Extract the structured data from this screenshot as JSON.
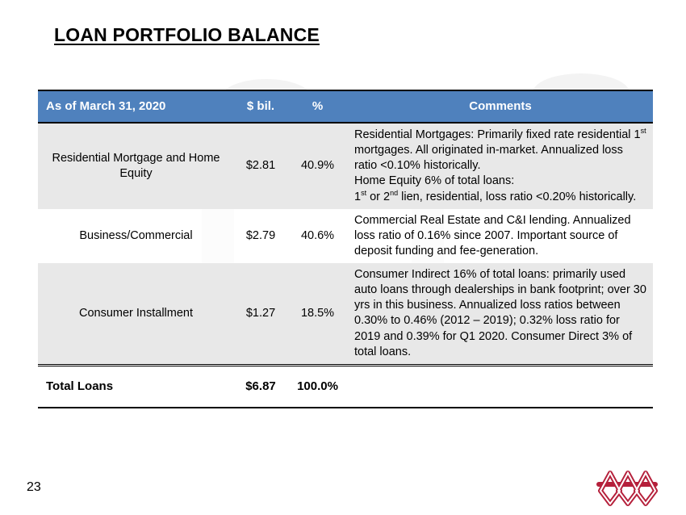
{
  "page": {
    "title": "LOAN PORTFOLIO BALANCE",
    "page_number": "23"
  },
  "table": {
    "headers": {
      "as_of": "As of March 31, 2020",
      "amount": "$ bil.",
      "percent": "%",
      "comments": "Comments"
    },
    "rows": [
      {
        "category": "Residential Mortgage and Home Equity",
        "amount": "$2.81",
        "percent": "40.9%",
        "comment_a": "Residential Mortgages: Primarily fixed rate residential 1",
        "comment_a_sup": "st",
        "comment_b": " mortgages.  All originated in-market.  Annualized loss ratio <0.10% historically.",
        "comment_c": "Home Equity 6% of total loans:",
        "comment_d": "1",
        "comment_d_sup": "st",
        "comment_e": " or 2",
        "comment_e_sup": "nd",
        "comment_f": " lien, residential, loss ratio <0.20% historically."
      },
      {
        "category": "Business/Commercial",
        "amount": "$2.79",
        "percent": "40.6%",
        "comment": "Commercial Real Estate and C&I lending. Annualized loss ratio of 0.16% since 2007. Important source of deposit funding and fee-generation."
      },
      {
        "category": "Consumer Installment",
        "amount": "$1.27",
        "percent": "18.5%",
        "comment": "Consumer Indirect 16% of total loans: primarily used auto loans through dealerships in bank footprint; over 30 yrs in this business. Annualized loss ratios between 0.30% to 0.46% (2012 – 2019); 0.32% loss ratio for 2019 and 0.39% for Q1 2020. Consumer Direct 3% of total loans."
      }
    ],
    "total": {
      "label": "Total Loans",
      "amount": "$6.87",
      "percent": "100.0%"
    }
  },
  "colors": {
    "header_bg": "#4f81bd",
    "row_shade": "#e8e8e8",
    "logo_red": "#b5203b"
  },
  "icons": {
    "logo": "bank-knot-logo",
    "background": "watermark-shapes"
  }
}
